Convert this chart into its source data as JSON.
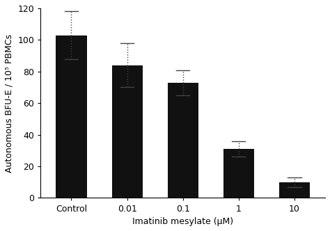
{
  "categories": [
    "Control",
    "0.01",
    "0.1",
    "1",
    "10"
  ],
  "values": [
    103,
    84,
    73,
    31,
    10
  ],
  "errors": [
    15,
    14,
    8,
    5,
    3
  ],
  "bar_color": "#111111",
  "error_color": "#444444",
  "bar_width": 0.55,
  "ylim": [
    0,
    120
  ],
  "yticks": [
    0,
    20,
    40,
    60,
    80,
    100,
    120
  ],
  "ylabel": "Autonomous BFU-E / 10⁵ PBMCs",
  "xlabel": "Imatinib mesylate (μM)",
  "background_color": "#ffffff",
  "tick_fontsize": 9,
  "label_fontsize": 9,
  "capsize": 3
}
